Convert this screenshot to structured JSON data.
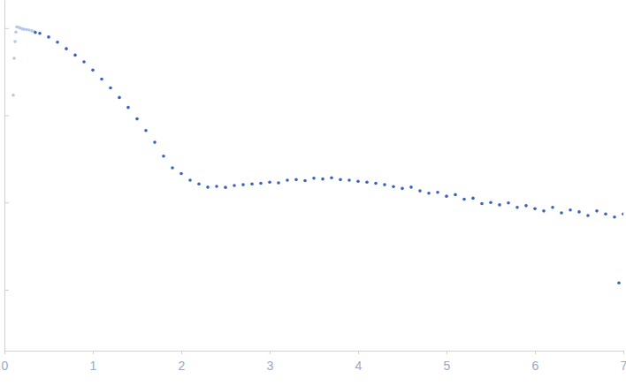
{
  "chart_data": {
    "type": "scatter",
    "log": "y",
    "tick_labels": "x",
    "grid": false,
    "xlim": [
      0,
      7
    ],
    "xticks": [
      0,
      1,
      2,
      3,
      4,
      5,
      6,
      7
    ],
    "ylim": [
      0.0002,
      2.1
    ],
    "yticks": [
      0.001,
      0.01,
      0.1,
      1
    ],
    "series": [
      {
        "color": "#b4c8ea",
        "marker": "circle",
        "x": [
          0.1,
          0.11,
          0.12,
          0.13,
          0.14,
          0.16,
          0.18,
          0.2,
          0.22,
          0.25,
          0.28,
          0.31,
          0.34
        ],
        "values": [
          0.17,
          0.45,
          0.7,
          0.9,
          1.03,
          1.02,
          1.0,
          0.98,
          0.97,
          0.96,
          0.95,
          0.93,
          0.91
        ]
      },
      {
        "color": "#3a62b8",
        "marker": "circle",
        "x": [
          0.35,
          0.4,
          0.5,
          0.6,
          0.7,
          0.8,
          0.9,
          1.0,
          1.1,
          1.2,
          1.3,
          1.4,
          1.5,
          1.6,
          1.7,
          1.8,
          1.9,
          2.0,
          2.1,
          2.2,
          2.3,
          2.4,
          2.5,
          2.6,
          2.7,
          2.8,
          2.9,
          3.0,
          3.1,
          3.2,
          3.3,
          3.4,
          3.5,
          3.6,
          3.7,
          3.8,
          3.9,
          4.0,
          4.1,
          4.2,
          4.3,
          4.4,
          4.5,
          4.6,
          4.7,
          4.8,
          4.9,
          5.0,
          5.1,
          5.2,
          5.3,
          5.4,
          5.5,
          5.6,
          5.7,
          5.8,
          5.9,
          6.0,
          6.1,
          6.2,
          6.3,
          6.4,
          6.5,
          6.6,
          6.7,
          6.8,
          6.9,
          6.95,
          7.0
        ],
        "values": [
          0.89,
          0.87,
          0.79,
          0.69,
          0.58,
          0.49,
          0.41,
          0.33,
          0.26,
          0.206,
          0.16,
          0.123,
          0.091,
          0.067,
          0.049,
          0.034,
          0.025,
          0.0215,
          0.018,
          0.0163,
          0.015,
          0.0153,
          0.0149,
          0.0157,
          0.016,
          0.0163,
          0.0166,
          0.0171,
          0.0168,
          0.018,
          0.0183,
          0.0178,
          0.019,
          0.0186,
          0.0192,
          0.0183,
          0.018,
          0.0175,
          0.0171,
          0.0166,
          0.016,
          0.0152,
          0.0145,
          0.015,
          0.0136,
          0.0128,
          0.0131,
          0.0118,
          0.0123,
          0.0109,
          0.0112,
          0.0097,
          0.01,
          0.0094,
          0.0099,
          0.0088,
          0.0092,
          0.0085,
          0.008,
          0.0088,
          0.0076,
          0.0082,
          0.0078,
          0.0071,
          0.008,
          0.0074,
          0.0068,
          0.0012,
          0.0074
        ]
      }
    ]
  }
}
